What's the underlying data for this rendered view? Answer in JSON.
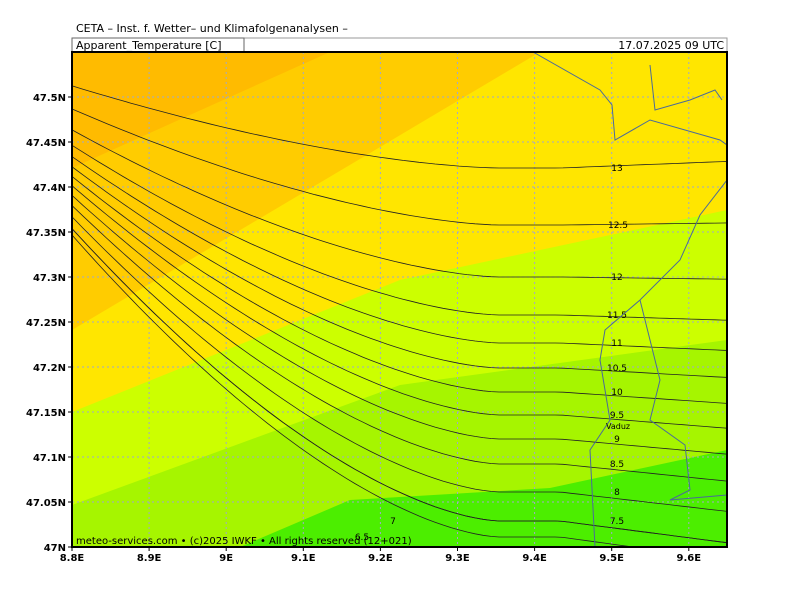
{
  "header": "CETA – Inst. f. Wetter– und Klimafolgenanalysen –",
  "title": "Apparent_Temperature [C]",
  "valid_time": "17.07.2025 09 UTC",
  "footer": "meteo-services.com • (c)2025 IWKF • All rights reserved (12+021)",
  "place": "Vaduz",
  "xticks": [
    {
      "value": 8.8,
      "label": "8.8E"
    },
    {
      "value": 8.9,
      "label": "8.9E"
    },
    {
      "value": 9,
      "label": "9E"
    },
    {
      "value": 9.1,
      "label": "9.1E"
    },
    {
      "value": 9.2,
      "label": "9.2E"
    },
    {
      "value": 9.3,
      "label": "9.3E"
    },
    {
      "value": 9.4,
      "label": "9.4E"
    },
    {
      "value": 9.5,
      "label": "9.5E"
    },
    {
      "value": 9.6,
      "label": "9.6E"
    }
  ],
  "yticks": [
    {
      "value": 47,
      "label": "47N"
    },
    {
      "value": 47.05,
      "label": "47.05N"
    },
    {
      "value": 47.1,
      "label": "47.1N"
    },
    {
      "value": 47.15,
      "label": "47.15N"
    },
    {
      "value": 47.2,
      "label": "47.2N"
    },
    {
      "value": 47.25,
      "label": "47.25N"
    },
    {
      "value": 47.3,
      "label": "47.3N"
    },
    {
      "value": 47.35,
      "label": "47.35N"
    },
    {
      "value": 47.4,
      "label": "47.4N"
    },
    {
      "value": 47.45,
      "label": "47.45N"
    },
    {
      "value": 47.5,
      "label": "47.5N"
    }
  ],
  "contours": [
    13,
    12.5,
    12,
    11.5,
    11,
    10.5,
    10,
    9.5,
    9,
    8.5,
    8,
    7.5,
    7,
    6.5
  ]
}
